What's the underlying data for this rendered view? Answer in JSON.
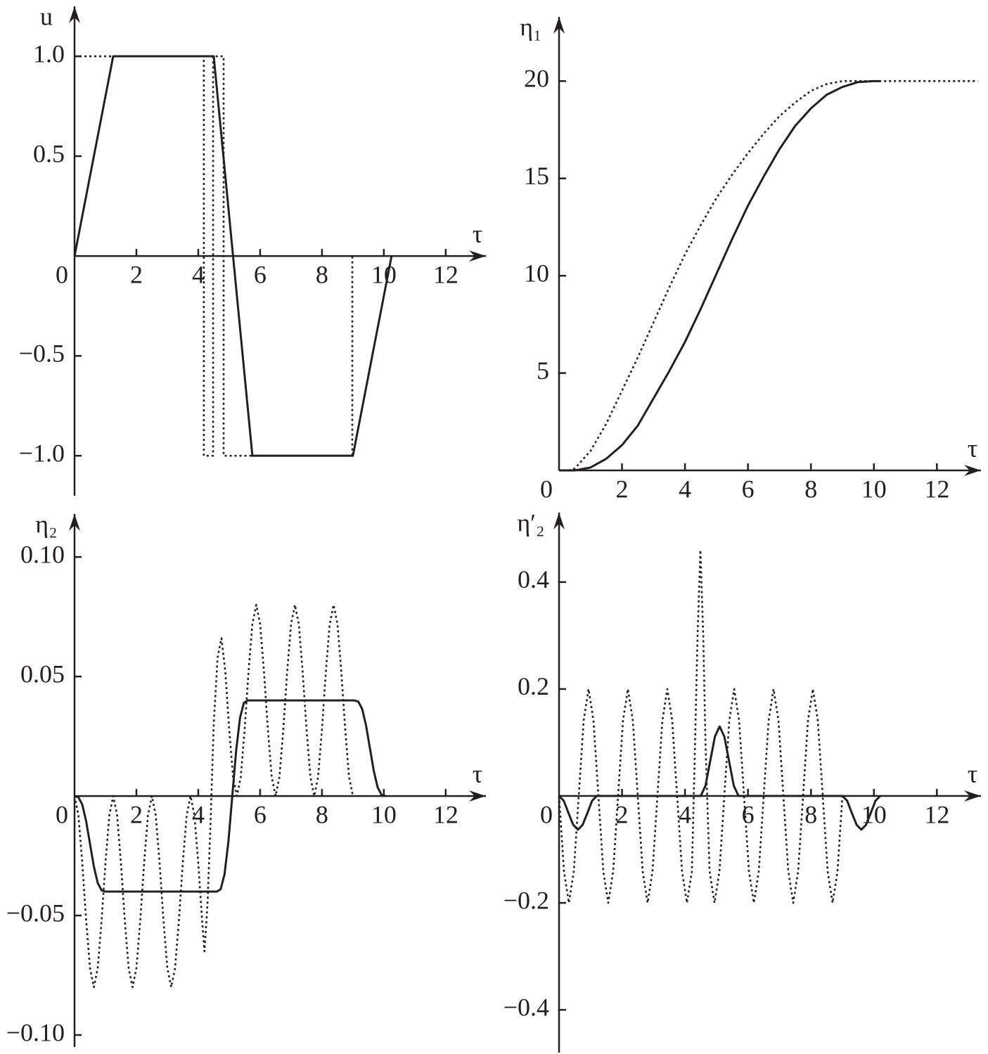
{
  "chart_data": [
    {
      "type": "line",
      "x_label": "τ",
      "y_label": "u",
      "xlim": [
        0,
        13.3
      ],
      "ylim": [
        -1.2,
        1.25
      ],
      "xticks": [
        0,
        2,
        4,
        6,
        8,
        10,
        12
      ],
      "yticks": [
        {
          "value": -1,
          "label": "−1.0"
        },
        {
          "value": -0.5,
          "label": "−0.5"
        },
        {
          "value": 0.5,
          "label": "0.5"
        },
        {
          "value": 1,
          "label": "1.0"
        }
      ],
      "series": [
        {
          "color": "#231f20",
          "dash": "solid",
          "x": [
            0,
            1.25,
            4.5,
            5.75,
            9,
            10.25
          ],
          "values": [
            0,
            1,
            1,
            -1,
            -1,
            0
          ]
        },
        {
          "color": "#231f20",
          "dash": "dotted",
          "x": [
            0,
            4.18,
            4.18,
            4.48,
            4.48,
            4.82,
            4.82,
            8.98,
            8.98
          ],
          "values": [
            1,
            1,
            -1,
            -1,
            1,
            1,
            -1,
            -1,
            0
          ]
        }
      ]
    },
    {
      "type": "line",
      "x_label": "τ",
      "y_label": "η₁",
      "xlim": [
        0,
        13.4
      ],
      "ylim": [
        0,
        23.3
      ],
      "xticks": [
        0,
        2,
        4,
        6,
        8,
        10,
        12
      ],
      "yticks": [
        5,
        10,
        15,
        20
      ],
      "series": [
        {
          "color": "#231f20",
          "dash": "solid",
          "x": [
            0,
            0.5,
            1,
            1.5,
            2,
            2.5,
            3,
            3.5,
            4,
            4.5,
            5,
            5.5,
            6,
            6.5,
            7,
            7.5,
            8,
            8.5,
            9,
            9.5,
            10,
            10.2
          ],
          "values": [
            0,
            0,
            0.15,
            0.6,
            1.3,
            2.3,
            3.7,
            5.1,
            6.6,
            8.3,
            10.1,
            11.9,
            13.6,
            15.1,
            16.5,
            17.7,
            18.6,
            19.3,
            19.7,
            19.95,
            20,
            20
          ]
        },
        {
          "color": "#231f20",
          "dash": "dotted",
          "x": [
            0.3,
            0.5,
            1,
            1.5,
            2,
            2.5,
            3,
            3.5,
            4,
            4.5,
            5,
            5.5,
            6,
            6.5,
            7,
            7.5,
            8,
            8.5,
            9,
            13.3
          ],
          "values": [
            0,
            0.1,
            1.0,
            2.4,
            4.1,
            5.8,
            7.6,
            9.4,
            11.1,
            12.6,
            14.0,
            15.2,
            16.3,
            17.3,
            18.2,
            18.9,
            19.5,
            19.85,
            20,
            20
          ]
        }
      ]
    },
    {
      "type": "line",
      "x_label": "τ",
      "y_label": "η₂",
      "xlim": [
        0,
        13.3
      ],
      "ylim": [
        -0.105,
        0.118
      ],
      "xticks": [
        0,
        2,
        4,
        6,
        8,
        10,
        12
      ],
      "yticks": [
        {
          "value": -0.1,
          "label": "−0.10"
        },
        {
          "value": -0.05,
          "label": "−0.05"
        },
        0.05,
        {
          "value": 0.1,
          "label": "0.10"
        }
      ],
      "series": [
        {
          "color": "#231f20",
          "dash": "solid",
          "x": [
            0,
            0.125,
            0.25,
            0.375,
            0.5,
            0.625,
            0.75,
            0.875,
            1,
            4.6,
            4.725,
            4.85,
            4.975,
            5.1,
            5.225,
            5.35,
            5.475,
            5.6,
            9.05,
            9.175,
            9.3,
            9.425,
            9.55,
            9.675,
            9.8,
            9.925,
            10.05
          ],
          "values": [
            0,
            -0.0005,
            -0.0036,
            -0.0105,
            -0.02,
            -0.0295,
            -0.0364,
            -0.0395,
            -0.04,
            -0.04,
            -0.039,
            -0.0327,
            -0.019,
            0,
            0.019,
            0.0327,
            0.039,
            0.04,
            0.04,
            0.0395,
            0.0364,
            0.0295,
            0.02,
            0.0105,
            0.0036,
            0.0005,
            0
          ]
        },
        {
          "color": "#231f20",
          "dash": "dotted",
          "x": [
            0,
            0.125,
            0.25,
            0.375,
            0.5,
            0.625,
            0.75,
            0.875,
            1,
            1.125,
            1.25,
            1.375,
            1.5,
            1.625,
            1.75,
            1.875,
            2,
            2.125,
            2.25,
            2.375,
            2.5,
            2.625,
            2.75,
            2.875,
            3,
            3.125,
            3.25,
            3.375,
            3.5,
            3.625,
            3.75,
            3.875,
            4,
            4.125,
            4.2,
            4.3,
            4.4,
            4.5,
            4.625,
            4.75,
            4.875,
            5,
            5.125,
            5.25,
            5.375,
            5.5,
            5.625,
            5.75,
            5.875,
            6,
            6.125,
            6.25,
            6.375,
            6.5,
            6.625,
            6.75,
            6.875,
            7,
            7.125,
            7.25,
            7.375,
            7.5,
            7.625,
            7.75,
            7.875,
            8,
            8.125,
            8.25,
            8.375,
            8.5,
            8.625,
            8.75,
            8.875,
            9
          ],
          "values": [
            0,
            -0.008,
            -0.028,
            -0.052,
            -0.072,
            -0.08,
            -0.072,
            -0.052,
            -0.028,
            -0.008,
            0,
            -0.008,
            -0.028,
            -0.052,
            -0.072,
            -0.08,
            -0.072,
            -0.052,
            -0.028,
            -0.008,
            0,
            -0.008,
            -0.028,
            -0.052,
            -0.072,
            -0.08,
            -0.072,
            -0.052,
            -0.028,
            -0.008,
            0,
            -0.008,
            -0.028,
            -0.052,
            -0.065,
            -0.045,
            -0.01,
            0.03,
            0.058,
            0.066,
            0.052,
            0.028,
            0.008,
            0,
            0.008,
            0.028,
            0.052,
            0.072,
            0.08,
            0.072,
            0.052,
            0.028,
            0.008,
            0,
            0.008,
            0.028,
            0.052,
            0.072,
            0.08,
            0.072,
            0.052,
            0.028,
            0.008,
            0,
            0.008,
            0.028,
            0.052,
            0.072,
            0.08,
            0.072,
            0.052,
            0.028,
            0.008,
            0
          ]
        }
      ]
    },
    {
      "type": "line",
      "x_label": "τ",
      "y_label": "η′₂",
      "xlim": [
        0,
        13.4
      ],
      "ylim": [
        -0.48,
        0.53
      ],
      "xticks": [
        0,
        2,
        4,
        6,
        8,
        10,
        12
      ],
      "yticks": [
        {
          "value": -0.4,
          "label": "−0.4"
        },
        {
          "value": -0.2,
          "label": "−0.2"
        },
        0.2,
        0.4
      ],
      "series": [
        {
          "color": "#231f20",
          "dash": "solid",
          "x": [
            0,
            0.15,
            0.3,
            0.45,
            0.6,
            0.75,
            0.9,
            1.05,
            1.2,
            4.5,
            4.65,
            4.8,
            4.95,
            5.1,
            5.25,
            5.4,
            5.55,
            5.7,
            9,
            9.15,
            9.3,
            9.45,
            9.6,
            9.75,
            9.9,
            10.05,
            10.2
          ],
          "values": [
            0,
            -0.009,
            -0.032,
            -0.054,
            -0.063,
            -0.054,
            -0.032,
            -0.009,
            0,
            0,
            0.019,
            0.065,
            0.111,
            0.13,
            0.111,
            0.065,
            0.019,
            0,
            0,
            -0.009,
            -0.032,
            -0.054,
            -0.063,
            -0.054,
            -0.032,
            -0.009,
            0
          ]
        },
        {
          "color": "#231f20",
          "dash": "dotted",
          "x": [
            0,
            0.15625,
            0.3125,
            0.46875,
            0.625,
            0.78125,
            0.9375,
            1.09375,
            1.25,
            1.40625,
            1.5625,
            1.71875,
            1.875,
            2.03125,
            2.1875,
            2.34375,
            2.5,
            2.65625,
            2.8125,
            2.96875,
            3.125,
            3.28125,
            3.4375,
            3.59375,
            3.75,
            3.90625,
            4.0625,
            4.21875,
            4.3,
            4.4,
            4.49,
            4.58,
            4.65,
            4.78125,
            4.9375,
            5.09375,
            5.25,
            5.40625,
            5.5625,
            5.71875,
            5.875,
            6.03125,
            6.1875,
            6.34375,
            6.5,
            6.65625,
            6.8125,
            6.96875,
            7.125,
            7.28125,
            7.4375,
            7.59375,
            7.75,
            7.90625,
            8.0625,
            8.21875,
            8.375,
            8.53125,
            8.6875,
            8.84375,
            9
          ],
          "values": [
            0,
            -0.141,
            -0.2,
            -0.141,
            0,
            0.141,
            0.2,
            0.141,
            0,
            -0.141,
            -0.2,
            -0.141,
            0,
            0.141,
            0.2,
            0.141,
            0,
            -0.141,
            -0.2,
            -0.141,
            0,
            0.141,
            0.2,
            0.141,
            0,
            -0.141,
            -0.2,
            -0.141,
            0.05,
            0.3,
            0.46,
            0.3,
            0.1,
            -0.141,
            -0.2,
            -0.141,
            0,
            0.141,
            0.2,
            0.141,
            0,
            -0.141,
            -0.2,
            -0.141,
            0,
            0.141,
            0.2,
            0.141,
            0,
            -0.141,
            -0.2,
            -0.141,
            0,
            0.141,
            0.2,
            0.141,
            0,
            -0.141,
            -0.2,
            -0.141,
            0
          ]
        }
      ]
    }
  ]
}
